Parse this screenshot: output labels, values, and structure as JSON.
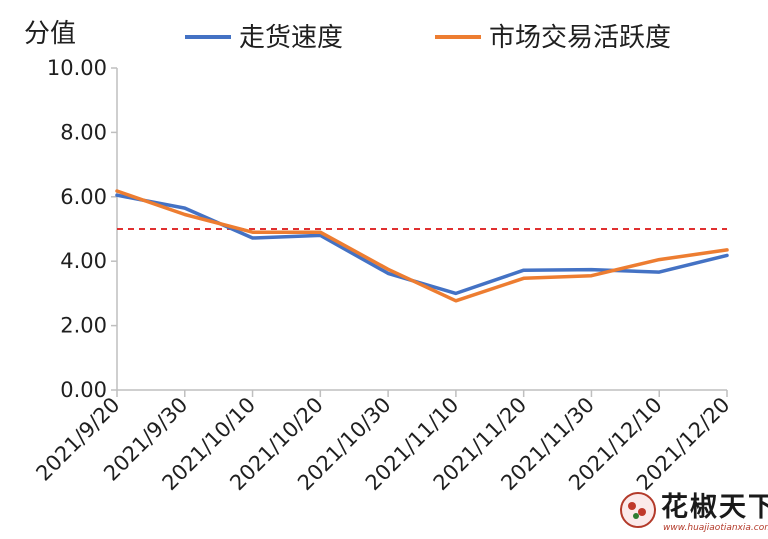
{
  "chart_data": {
    "type": "line",
    "ylabel": "分值",
    "ylim": [
      0,
      10
    ],
    "yticks": [
      "0.00",
      "2.00",
      "4.00",
      "6.00",
      "8.00",
      "10.00"
    ],
    "categories": [
      "2021/9/20",
      "2021/9/30",
      "2021/10/10",
      "2021/10/20",
      "2021/10/30",
      "2021/11/10",
      "2021/11/20",
      "2021/11/30",
      "2021/12/10",
      "2021/12/20"
    ],
    "series": [
      {
        "name": "走货速度",
        "color": "#4472C4",
        "values": [
          6.05,
          5.65,
          4.72,
          4.8,
          3.62,
          3.0,
          3.72,
          3.74,
          3.66,
          4.18
        ]
      },
      {
        "name": "市场交易活跃度",
        "color": "#ED7D31",
        "values": [
          6.18,
          5.45,
          4.9,
          4.9,
          3.75,
          2.77,
          3.47,
          3.55,
          4.05,
          4.35
        ]
      }
    ],
    "reference_line": {
      "value": 5.0,
      "color": "#E03030"
    },
    "legend_position": "top",
    "grid": false
  },
  "watermark": {
    "name": "花椒天下",
    "url": "www.huajiaotianxia.com"
  }
}
